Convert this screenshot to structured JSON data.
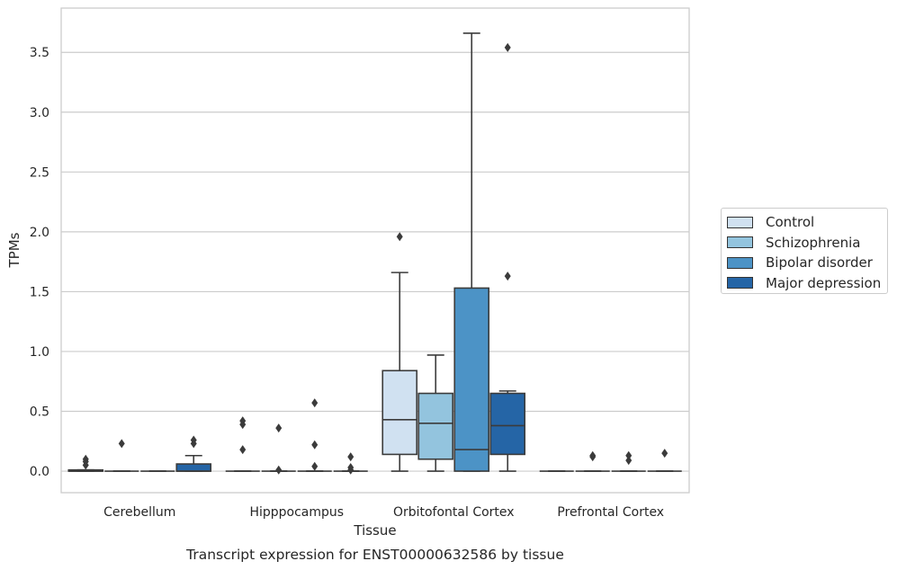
{
  "chart_data": {
    "type": "box",
    "title": "Transcript expression for ENST00000632586 by tissue",
    "xlabel": "Tissue",
    "ylabel": "TPMs",
    "ylim": [
      -0.18,
      3.87
    ],
    "yticks": [
      "0.0",
      "0.5",
      "1.0",
      "1.5",
      "2.0",
      "2.5",
      "3.0",
      "3.5"
    ],
    "grid": true,
    "legend_position": "right",
    "categories": [
      "Cerebellum",
      "Hipppocampus",
      "Orbitofontal Cortex",
      "Prefrontal Cortex"
    ],
    "series": [
      {
        "name": "Control",
        "color": "#d0e1f1",
        "boxes": [
          {
            "q1": 0.0,
            "median": 0.0,
            "q3": 0.01,
            "whisker_low": 0.0,
            "whisker_high": 0.01,
            "outliers": [
              0.1,
              0.08,
              0.05
            ]
          },
          {
            "q1": 0.0,
            "median": 0.0,
            "q3": 0.0,
            "whisker_low": 0.0,
            "whisker_high": 0.0,
            "outliers": [
              0.42,
              0.39,
              0.18
            ]
          },
          {
            "q1": 0.14,
            "median": 0.43,
            "q3": 0.84,
            "whisker_low": 0.0,
            "whisker_high": 1.66,
            "outliers": [
              1.96
            ]
          },
          {
            "q1": 0.0,
            "median": 0.0,
            "q3": 0.0,
            "whisker_low": 0.0,
            "whisker_high": 0.0,
            "outliers": []
          }
        ]
      },
      {
        "name": "Schizophrenia",
        "color": "#93c4de",
        "boxes": [
          {
            "q1": 0.0,
            "median": 0.0,
            "q3": 0.0,
            "whisker_low": 0.0,
            "whisker_high": 0.0,
            "outliers": [
              0.23
            ]
          },
          {
            "q1": 0.0,
            "median": 0.0,
            "q3": 0.0,
            "whisker_low": 0.0,
            "whisker_high": 0.0,
            "outliers": [
              0.36,
              0.01
            ]
          },
          {
            "q1": 0.1,
            "median": 0.4,
            "q3": 0.65,
            "whisker_low": 0.0,
            "whisker_high": 0.97,
            "outliers": []
          },
          {
            "q1": 0.0,
            "median": 0.0,
            "q3": 0.0,
            "whisker_low": 0.0,
            "whisker_high": 0.0,
            "outliers": [
              0.13,
              0.12
            ]
          }
        ]
      },
      {
        "name": "Bipolar disorder",
        "color": "#4c93c6",
        "boxes": [
          {
            "q1": 0.0,
            "median": 0.0,
            "q3": 0.0,
            "whisker_low": 0.0,
            "whisker_high": 0.0,
            "outliers": []
          },
          {
            "q1": 0.0,
            "median": 0.0,
            "q3": 0.0,
            "whisker_low": 0.0,
            "whisker_high": 0.0,
            "outliers": [
              0.57,
              0.22,
              0.04
            ]
          },
          {
            "q1": 0.0,
            "median": 0.18,
            "q3": 1.53,
            "whisker_low": 0.0,
            "whisker_high": 3.66,
            "outliers": []
          },
          {
            "q1": 0.0,
            "median": 0.0,
            "q3": 0.0,
            "whisker_low": 0.0,
            "whisker_high": 0.0,
            "outliers": [
              0.13,
              0.09
            ]
          }
        ]
      },
      {
        "name": "Major depression",
        "color": "#2565a6",
        "boxes": [
          {
            "q1": 0.0,
            "median": 0.0,
            "q3": 0.06,
            "whisker_low": 0.0,
            "whisker_high": 0.13,
            "outliers": [
              0.26,
              0.23
            ]
          },
          {
            "q1": 0.0,
            "median": 0.0,
            "q3": 0.0,
            "whisker_low": 0.0,
            "whisker_high": 0.0,
            "outliers": [
              0.12,
              0.03,
              0.01
            ]
          },
          {
            "q1": 0.14,
            "median": 0.38,
            "q3": 0.65,
            "whisker_low": 0.0,
            "whisker_high": 0.67,
            "outliers": [
              3.54,
              1.63
            ]
          },
          {
            "q1": 0.0,
            "median": 0.0,
            "q3": 0.0,
            "whisker_low": 0.0,
            "whisker_high": 0.0,
            "outliers": [
              0.15
            ]
          }
        ]
      }
    ]
  }
}
